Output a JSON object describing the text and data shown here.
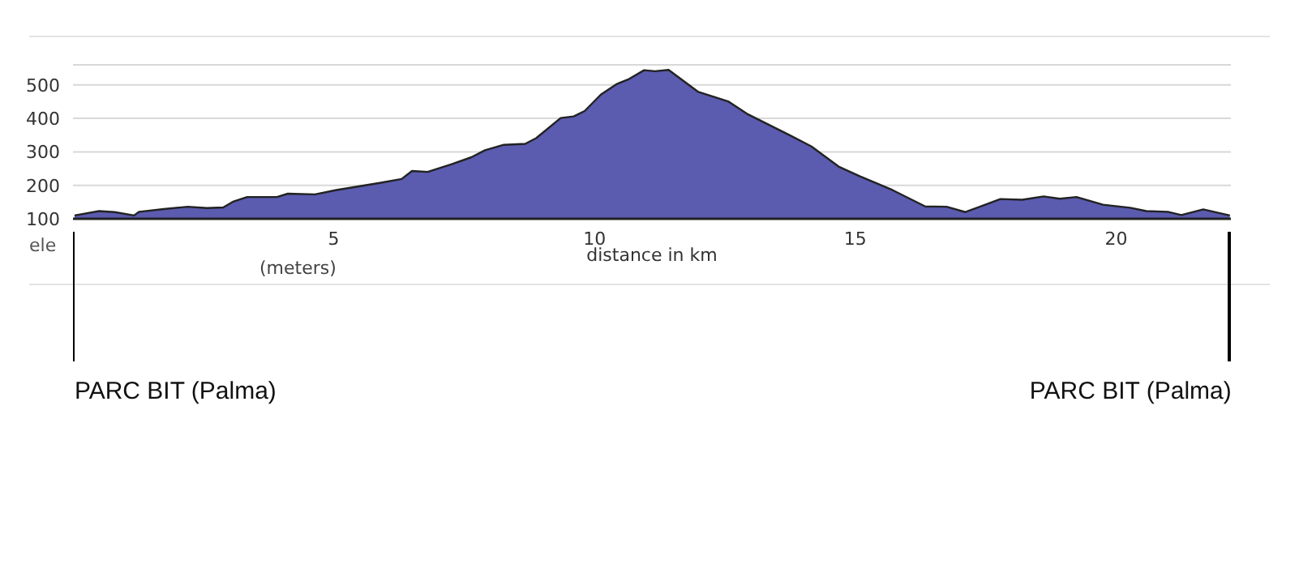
{
  "chart_data": {
    "type": "area",
    "xlabel": "distance in km",
    "annotations": [
      "ele",
      "(meters)"
    ],
    "x": [
      0.03,
      0.5,
      0.8,
      1.17,
      1.27,
      1.74,
      2.2,
      2.57,
      2.88,
      3.08,
      3.34,
      3.91,
      4.12,
      4.64,
      5.05,
      5.88,
      6.3,
      6.5,
      6.8,
      7.26,
      7.64,
      7.9,
      8.26,
      8.67,
      8.88,
      9.35,
      9.6,
      9.81,
      10.12,
      10.43,
      10.64,
      10.95,
      11.16,
      11.42,
      11.99,
      12.56,
      12.92,
      13.75,
      14.16,
      14.68,
      15.09,
      15.71,
      16.34,
      16.75,
      17.11,
      17.78,
      18.2,
      18.61,
      18.92,
      19.24,
      19.75,
      20.27,
      20.58,
      20.99,
      21.25,
      21.67,
      22.18
    ],
    "series": [
      {
        "color": "#5b5bb0",
        "values": [
          110,
          123,
          120,
          110,
          121,
          129,
          136,
          132,
          134,
          152,
          165,
          165,
          175,
          173,
          186,
          207,
          219,
          243,
          240,
          263,
          284,
          305,
          321,
          324,
          341,
          401,
          406,
          422,
          471,
          503,
          516,
          544,
          541,
          545,
          479,
          451,
          414,
          349,
          316,
          256,
          227,
          186,
          137,
          136,
          120,
          159,
          157,
          167,
          160,
          165,
          142,
          133,
          123,
          121,
          111,
          128,
          110
        ]
      }
    ],
    "xlim": [
      0,
      22.2
    ],
    "xticks": [
      5,
      10,
      15,
      20
    ],
    "ylim": [
      100,
      560
    ],
    "yticks": [
      100,
      200,
      300,
      400,
      500
    ],
    "grid": "y",
    "legend": false,
    "marker": "none",
    "ref_lines": [
      {
        "axis": "x",
        "value": 0.03,
        "label": "PARC BIT (Palma)",
        "color": "#000000"
      },
      {
        "axis": "x",
        "value": 22.18,
        "label": "PARC BIT (Palma)",
        "color": "#000000"
      }
    ]
  }
}
